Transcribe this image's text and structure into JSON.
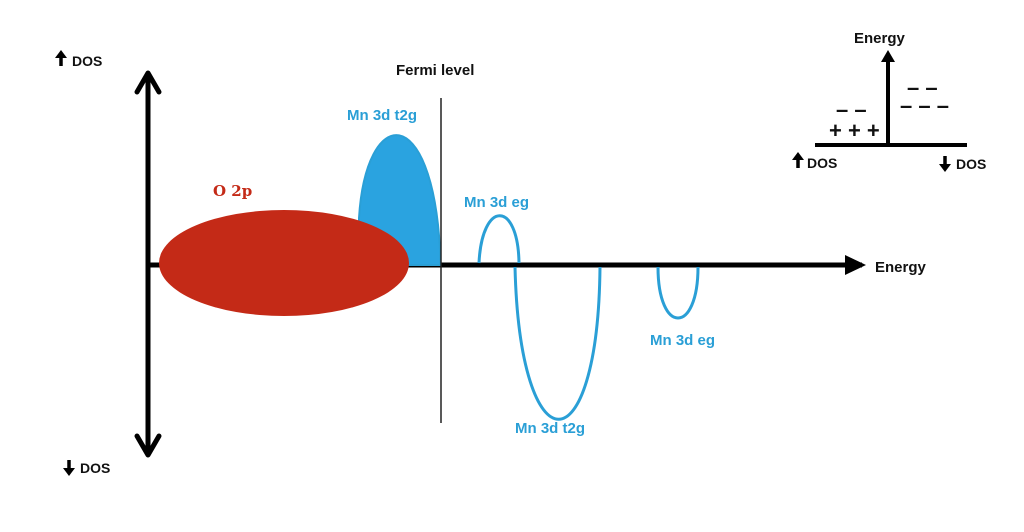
{
  "labels": {
    "dos_up": "DOS",
    "dos_down": "DOS",
    "energy_axis": "Energy",
    "fermi_level": "Fermi level",
    "o2p": "O 2p",
    "mn_t2g_up": "Mn 3d t2g",
    "mn_eg_up": "Mn 3d eg",
    "mn_t2g_down": "Mn 3d t2g",
    "mn_eg_down": "Mn 3d eg"
  },
  "inset": {
    "energy": "Energy",
    "dos_up": "DOS",
    "dos_down": "DOS",
    "left_upper": "– –",
    "left_lower": "+ + +",
    "right_upper": "– –",
    "right_lower": "– – –"
  },
  "colors": {
    "o2p": "#c42a17",
    "mn_band": "#2aa3e0",
    "mn_text": "#2a9fd6",
    "axis": "#000000"
  },
  "icons": {
    "up_arrow": "up-arrow-icon",
    "down_arrow": "down-arrow-icon"
  }
}
